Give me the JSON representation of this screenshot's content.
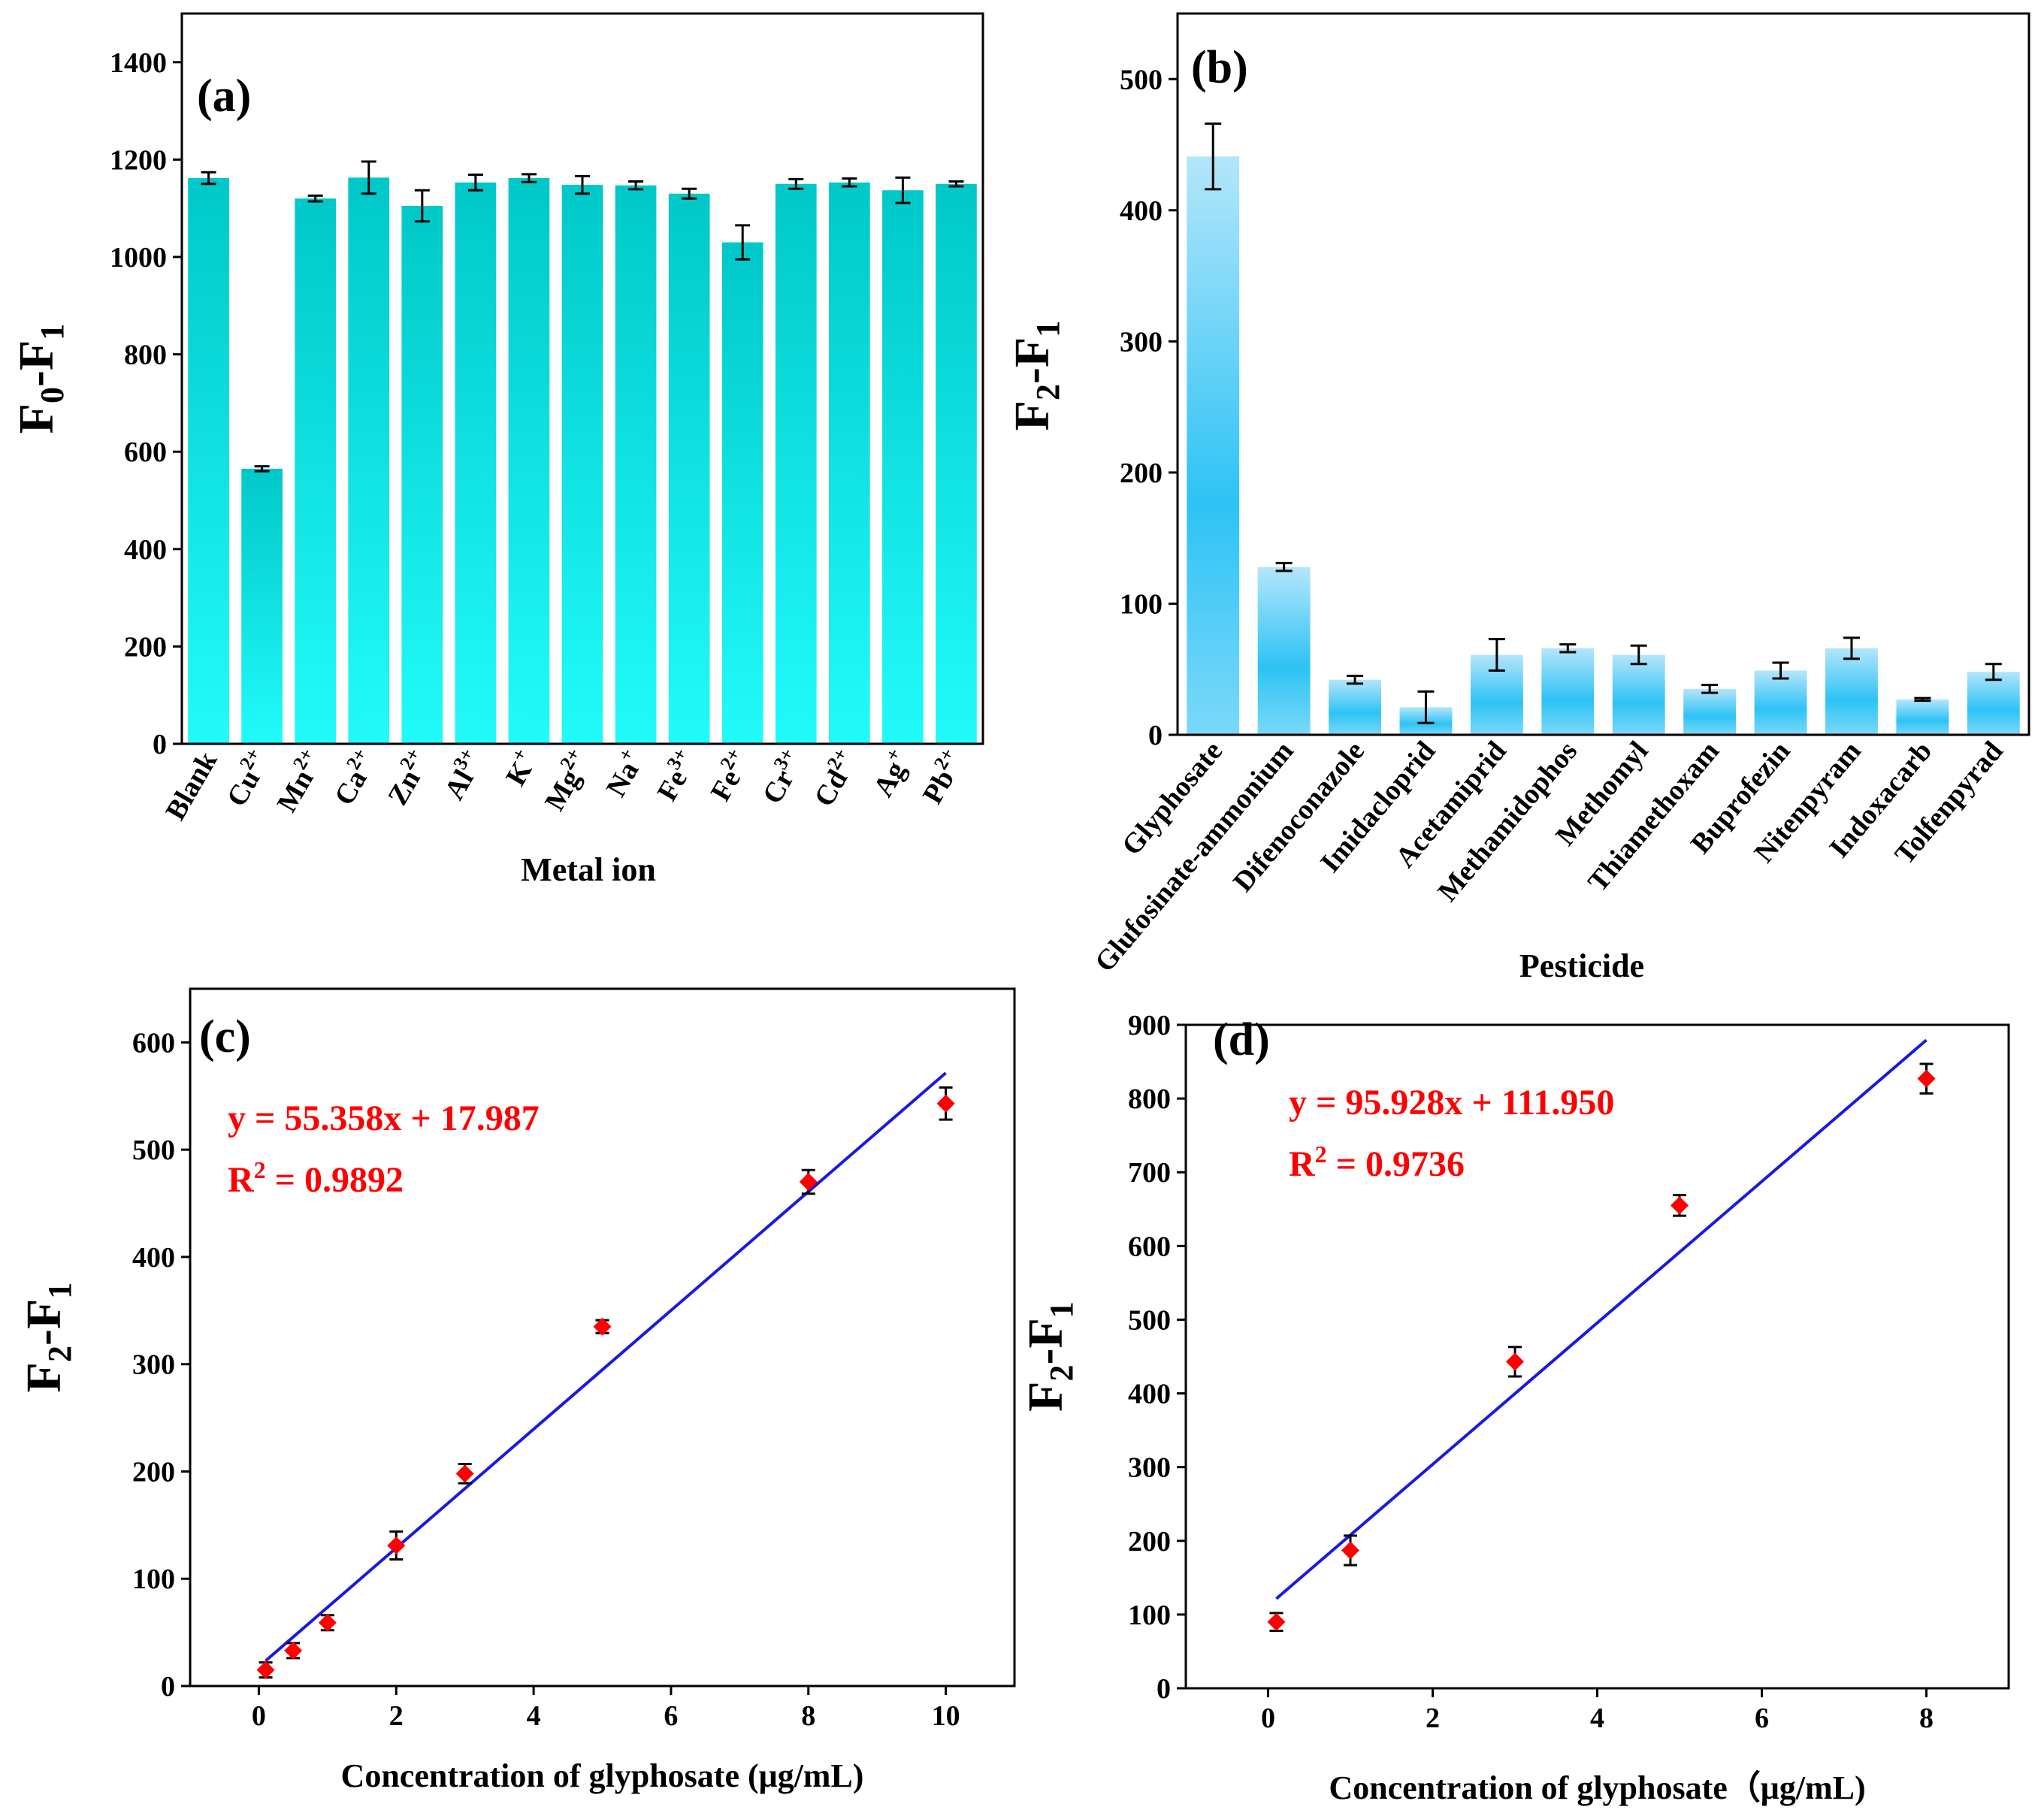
{
  "chart_data": [
    {
      "panel": "(a)",
      "type": "bar",
      "xlabel": "Metal ion",
      "ylabel": "F0-F1",
      "ylim": [
        0,
        1500
      ],
      "yticks": [
        0,
        200,
        400,
        600,
        800,
        1000,
        1200,
        1400
      ],
      "categories": [
        {
          "base": "Blank",
          "sup": ""
        },
        {
          "base": "Cu",
          "sup": "2+"
        },
        {
          "base": "Mn",
          "sup": "2+"
        },
        {
          "base": "Ca",
          "sup": "2+"
        },
        {
          "base": "Zn",
          "sup": "2+"
        },
        {
          "base": "Al",
          "sup": "3+"
        },
        {
          "base": "K",
          "sup": "+"
        },
        {
          "base": "Mg",
          "sup": "2+"
        },
        {
          "base": "Na",
          "sup": "+"
        },
        {
          "base": "Fe",
          "sup": "3+"
        },
        {
          "base": "Fe",
          "sup": "2+"
        },
        {
          "base": "Cr",
          "sup": "3+"
        },
        {
          "base": "Cd",
          "sup": "2+"
        },
        {
          "base": "Ag",
          "sup": "+"
        },
        {
          "base": "Pb",
          "sup": "2+"
        }
      ],
      "values": [
        1162,
        565,
        1120,
        1163,
        1105,
        1153,
        1162,
        1148,
        1147,
        1130,
        1030,
        1150,
        1153,
        1137,
        1150
      ],
      "errors": [
        12,
        5,
        6,
        33,
        32,
        16,
        8,
        18,
        8,
        10,
        35,
        10,
        8,
        26,
        5
      ],
      "color": "#00d8d8"
    },
    {
      "panel": "(b)",
      "type": "bar",
      "xlabel": "Pesticide",
      "ylabel": "F2-F1",
      "ylim": [
        0,
        550
      ],
      "yticks": [
        0,
        100,
        200,
        300,
        400,
        500
      ],
      "categories": [
        "Glyphosate",
        "Glufosinate-ammonium",
        "Difenoconazole",
        "Imidacloprid",
        "Acetamiprid",
        "Methamidophos",
        "Methomyl",
        "Thiamethoxam",
        "Buprofezin",
        "Nitenpyram",
        "Indoxacarb",
        "Tolfenpyrad"
      ],
      "values": [
        441,
        128,
        42,
        21,
        61,
        66,
        61,
        35,
        49,
        66,
        27,
        48
      ],
      "errors": [
        25,
        3,
        3,
        12,
        12,
        3,
        7,
        3,
        6,
        8,
        1,
        6
      ],
      "color": "#3cc8f4"
    },
    {
      "panel": "(c)",
      "type": "scatter",
      "xlabel": "Concentration of glyphosate (μg/mL)",
      "ylabel": "F2-F1",
      "xlim": [
        -1,
        11
      ],
      "ylim": [
        0,
        650
      ],
      "xticks": [
        0,
        2,
        4,
        6,
        8,
        10
      ],
      "yticks": [
        0,
        100,
        200,
        300,
        400,
        500,
        600
      ],
      "x": [
        0.1,
        0.5,
        1,
        2,
        3,
        5,
        8,
        10
      ],
      "y": [
        15,
        33,
        59,
        131,
        198,
        335,
        470,
        543
      ],
      "errors": [
        7,
        7,
        7,
        13,
        9,
        6,
        11,
        15
      ],
      "fit": {
        "slope": 55.358,
        "intercept": 17.987,
        "x_range": [
          0.1,
          10
        ]
      },
      "equation": "y = 55.358x + 17.987",
      "r2_prefix": "R",
      "r2_sup": "2",
      "r2_value": " = 0.9892"
    },
    {
      "panel": "(d)",
      "type": "scatter",
      "xlabel": "Concentration of glyphosate（μg/mL)",
      "ylabel": "F2-F1",
      "xlim": [
        -1,
        9
      ],
      "ylim": [
        0,
        900
      ],
      "xticks": [
        0,
        2,
        4,
        6,
        8
      ],
      "yticks": [
        0,
        100,
        200,
        300,
        400,
        500,
        600,
        700,
        800,
        900
      ],
      "x": [
        0.1,
        1,
        3,
        5,
        8
      ],
      "y": [
        90,
        187,
        443,
        655,
        827
      ],
      "errors": [
        12,
        20,
        20,
        14,
        20
      ],
      "fit": {
        "slope": 95.928,
        "intercept": 111.95,
        "x_range": [
          0.1,
          8
        ]
      },
      "equation": "y = 95.928x + 111.950",
      "r2_prefix": "R",
      "r2_sup": "2",
      "r2_value": " = 0.9736"
    }
  ]
}
